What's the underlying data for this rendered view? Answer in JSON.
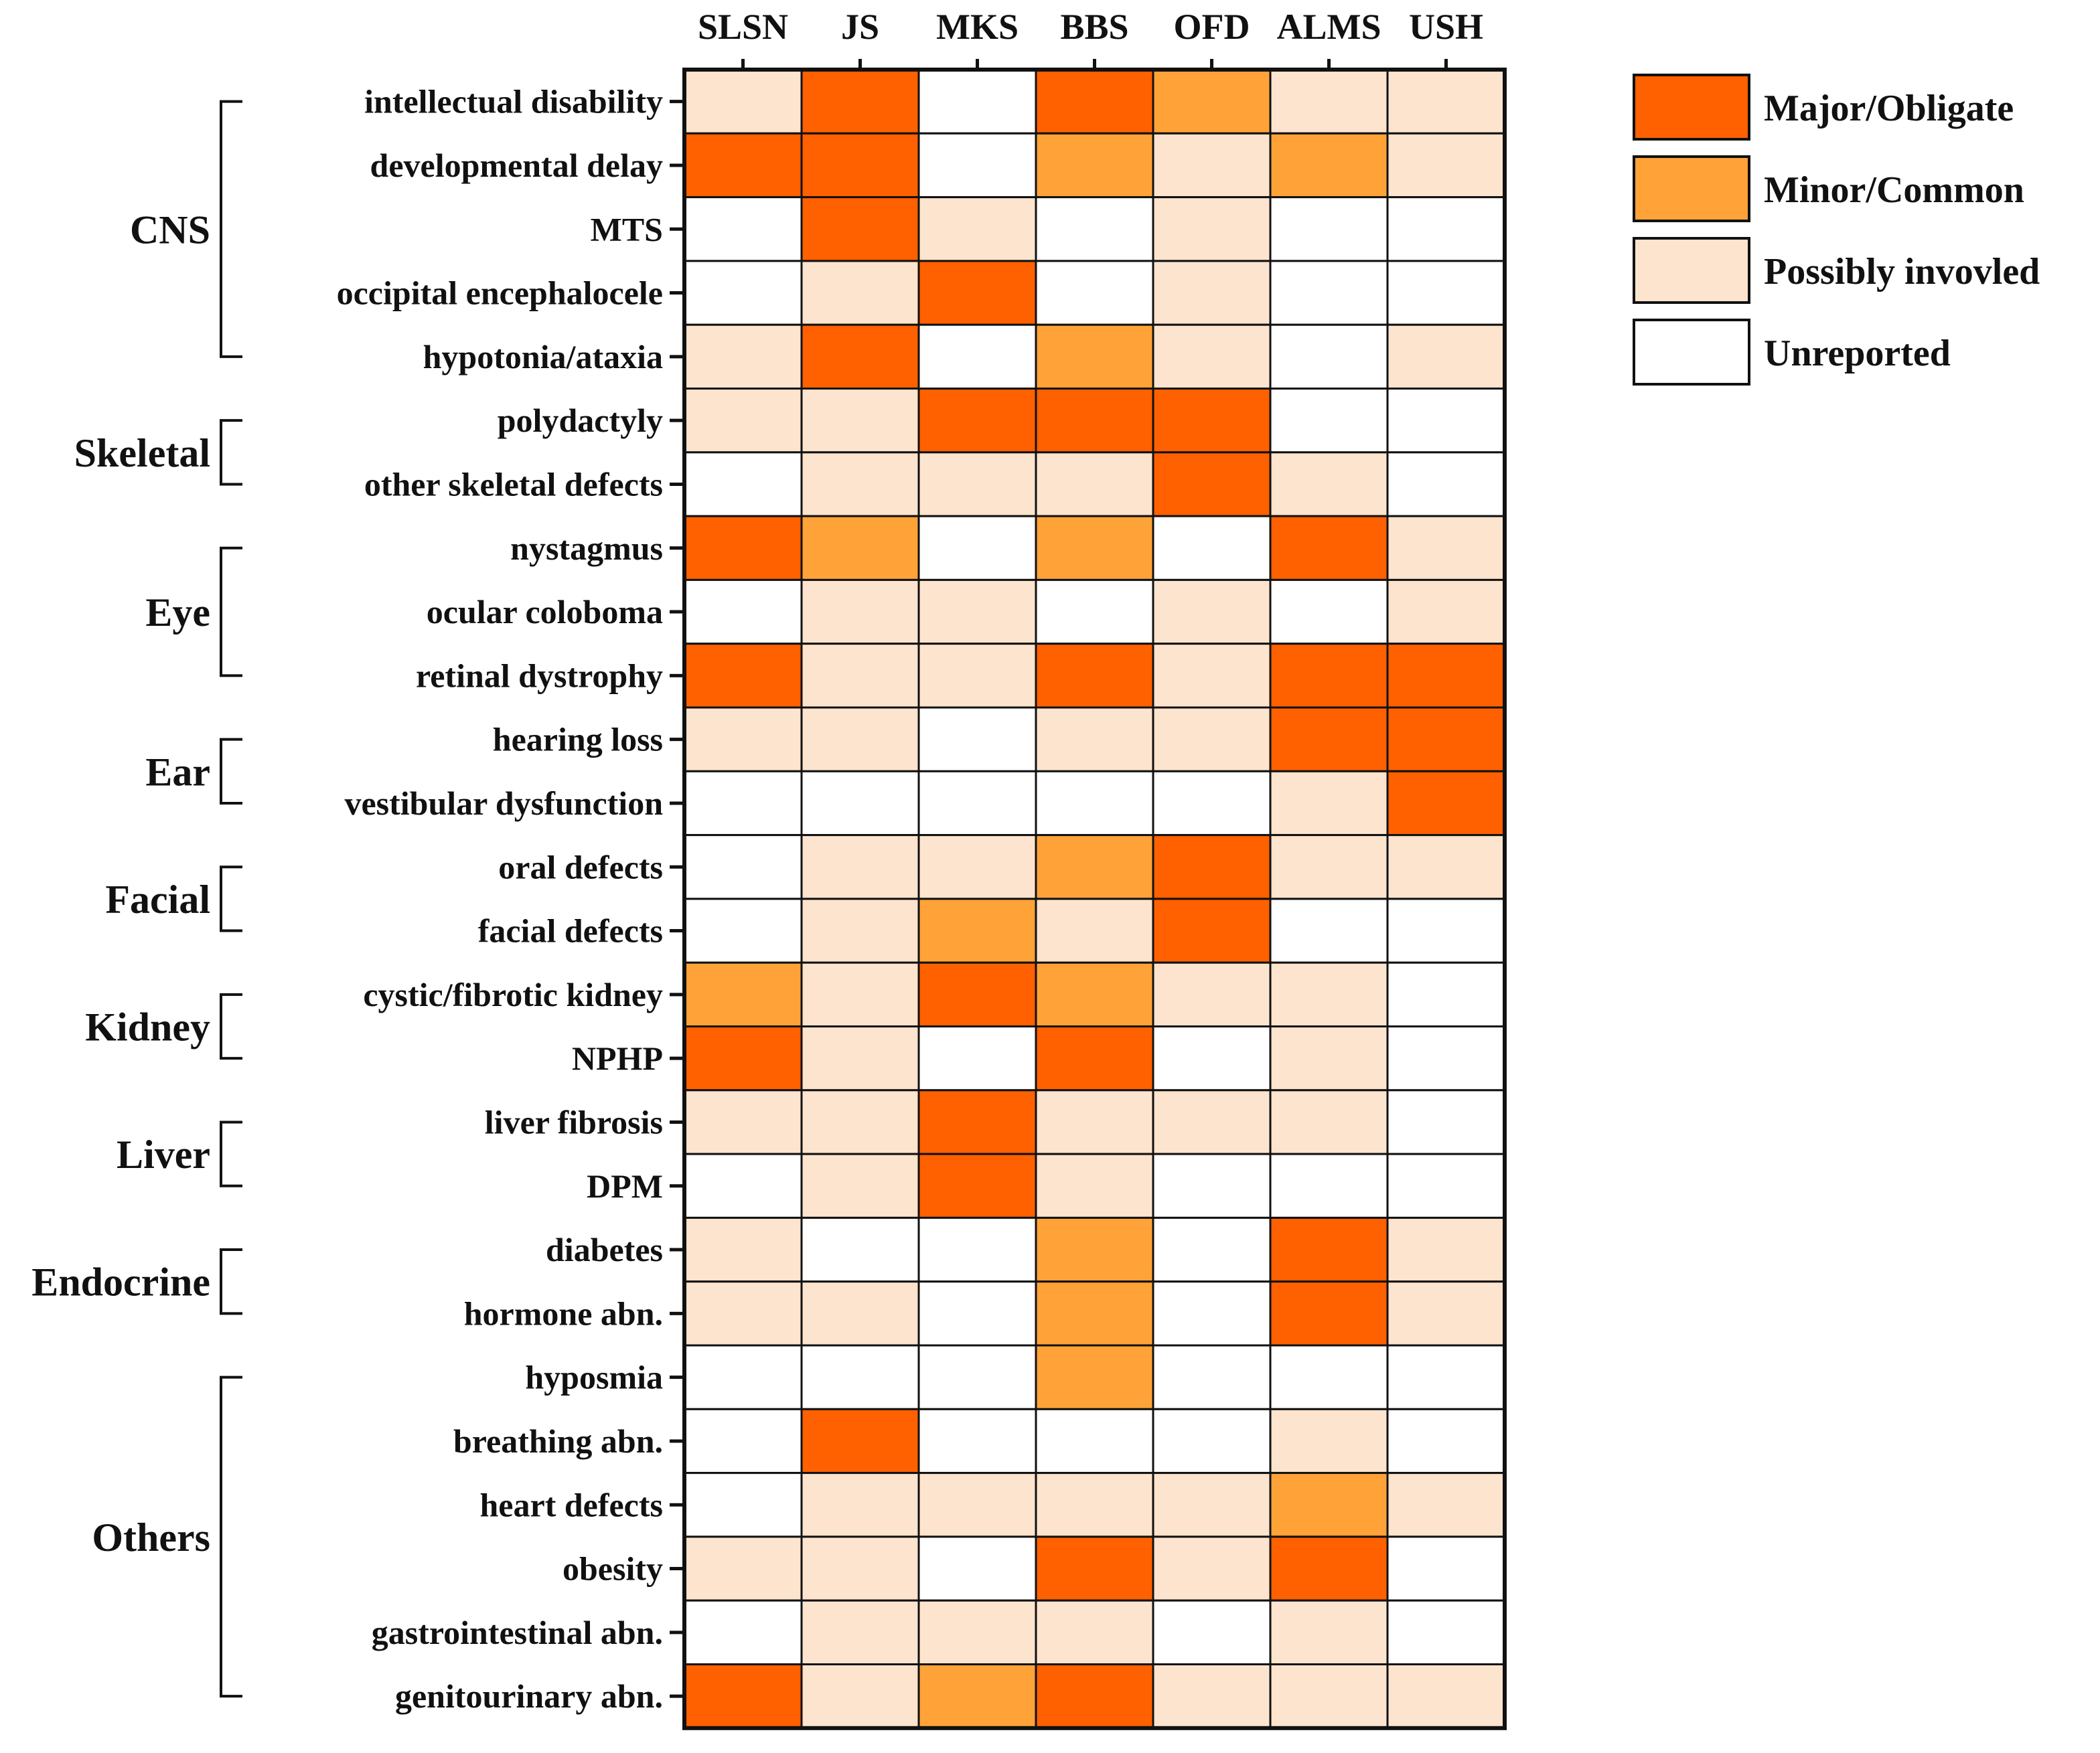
{
  "colors": {
    "major": "#ff6000",
    "minor": "#ffa338",
    "possible": "#fde4ce",
    "unreported": "#ffffff",
    "line": "#111111"
  },
  "legend": [
    {
      "key": "major",
      "label": "Major/Obligate"
    },
    {
      "key": "minor",
      "label": "Minor/Common"
    },
    {
      "key": "possible",
      "label": "Possibly invovled"
    },
    {
      "key": "unreported",
      "label": "Unreported"
    }
  ],
  "chart_data": {
    "type": "heatmap",
    "title": "",
    "columns": [
      "SLSN",
      "JS",
      "MKS",
      "BBS",
      "OFD",
      "ALMS",
      "USH"
    ],
    "value_scale": {
      "3": "Major/Obligate",
      "2": "Minor/Common",
      "1": "Possibly invovled",
      "0": "Unreported"
    },
    "groups": [
      {
        "label": "CNS",
        "rows": [
          0,
          4
        ]
      },
      {
        "label": "Skeletal",
        "rows": [
          5,
          6
        ]
      },
      {
        "label": "Eye",
        "rows": [
          7,
          9
        ]
      },
      {
        "label": "Ear",
        "rows": [
          10,
          11
        ]
      },
      {
        "label": "Facial",
        "rows": [
          12,
          13
        ]
      },
      {
        "label": "Kidney",
        "rows": [
          14,
          15
        ]
      },
      {
        "label": "Liver",
        "rows": [
          16,
          17
        ]
      },
      {
        "label": "Endocrine",
        "rows": [
          18,
          19
        ]
      },
      {
        "label": "Others",
        "rows": [
          20,
          25
        ]
      }
    ],
    "rows": [
      {
        "label": "intellectual disability",
        "values": [
          1,
          3,
          0,
          3,
          2,
          1,
          1
        ]
      },
      {
        "label": "developmental delay",
        "values": [
          3,
          3,
          0,
          2,
          1,
          2,
          1
        ]
      },
      {
        "label": "MTS",
        "values": [
          0,
          3,
          1,
          0,
          1,
          0,
          0
        ]
      },
      {
        "label": "occipital encephalocele",
        "values": [
          0,
          1,
          3,
          0,
          1,
          0,
          0
        ]
      },
      {
        "label": "hypotonia/ataxia",
        "values": [
          1,
          3,
          0,
          2,
          1,
          0,
          1
        ]
      },
      {
        "label": "polydactyly",
        "values": [
          1,
          1,
          3,
          3,
          3,
          0,
          0
        ]
      },
      {
        "label": "other skeletal defects",
        "values": [
          0,
          1,
          1,
          1,
          3,
          1,
          0
        ]
      },
      {
        "label": "nystagmus",
        "values": [
          3,
          2,
          0,
          2,
          0,
          3,
          1
        ]
      },
      {
        "label": "ocular coloboma",
        "values": [
          0,
          1,
          1,
          0,
          1,
          0,
          1
        ]
      },
      {
        "label": "retinal dystrophy",
        "values": [
          3,
          1,
          1,
          3,
          1,
          3,
          3
        ]
      },
      {
        "label": "hearing loss",
        "values": [
          1,
          1,
          0,
          1,
          1,
          3,
          3
        ]
      },
      {
        "label": "vestibular dysfunction",
        "values": [
          0,
          0,
          0,
          0,
          0,
          1,
          3
        ]
      },
      {
        "label": "oral defects",
        "values": [
          0,
          1,
          1,
          2,
          3,
          1,
          1
        ]
      },
      {
        "label": "facial defects",
        "values": [
          0,
          1,
          2,
          1,
          3,
          0,
          0
        ]
      },
      {
        "label": "cystic/fibrotic kidney",
        "values": [
          2,
          1,
          3,
          2,
          1,
          1,
          0
        ]
      },
      {
        "label": "NPHP",
        "values": [
          3,
          1,
          0,
          3,
          0,
          1,
          0
        ]
      },
      {
        "label": "liver fibrosis",
        "values": [
          1,
          1,
          3,
          1,
          1,
          1,
          0
        ]
      },
      {
        "label": "DPM",
        "values": [
          0,
          1,
          3,
          1,
          0,
          0,
          0
        ]
      },
      {
        "label": "diabetes",
        "values": [
          1,
          0,
          0,
          2,
          0,
          3,
          1
        ]
      },
      {
        "label": "hormone abn.",
        "values": [
          1,
          1,
          0,
          2,
          0,
          3,
          1
        ]
      },
      {
        "label": "hyposmia",
        "values": [
          0,
          0,
          0,
          2,
          0,
          0,
          0
        ]
      },
      {
        "label": "breathing abn.",
        "values": [
          0,
          3,
          0,
          0,
          0,
          1,
          0
        ]
      },
      {
        "label": "heart defects",
        "values": [
          0,
          1,
          1,
          1,
          1,
          2,
          1
        ]
      },
      {
        "label": "obesity",
        "values": [
          1,
          1,
          0,
          3,
          1,
          3,
          0
        ]
      },
      {
        "label": "gastrointestinal abn.",
        "values": [
          0,
          1,
          1,
          1,
          0,
          1,
          0
        ]
      },
      {
        "label": "genitourinary abn.",
        "values": [
          3,
          1,
          2,
          3,
          1,
          1,
          1
        ]
      }
    ]
  }
}
